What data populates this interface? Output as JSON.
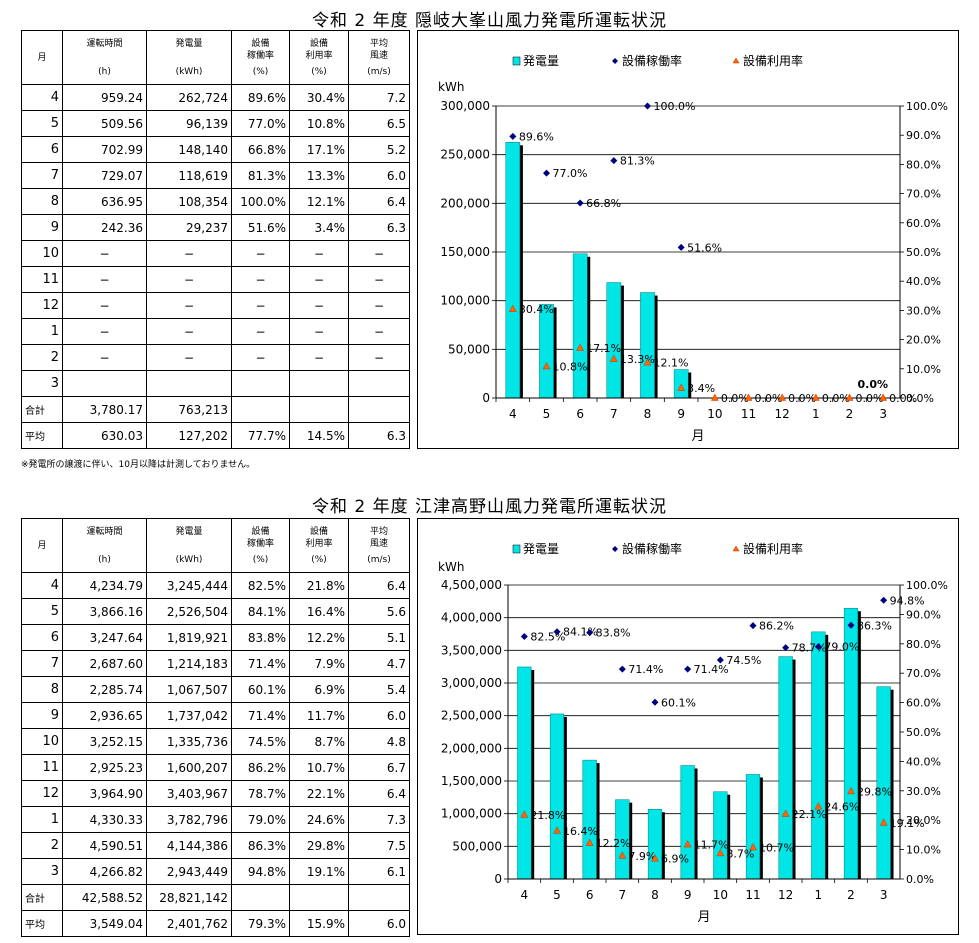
{
  "sections": [
    {
      "title": "令和 2 年度 隠岐大峯山風力発電所運転状況",
      "headers": [
        {
          "l1": "月",
          "l2": "",
          "l3": ""
        },
        {
          "l1": "運転時間",
          "l2": "",
          "l3": "(h)"
        },
        {
          "l1": "発電量",
          "l2": "",
          "l3": "(kWh)"
        },
        {
          "l1": "設備",
          "l2": "稼働率",
          "l3": "(%)"
        },
        {
          "l1": "設備",
          "l2": "利用率",
          "l3": "(%)"
        },
        {
          "l1": "平均",
          "l2": "風速",
          "l3": "(m/s)"
        }
      ],
      "rows": [
        [
          "4",
          "959.24",
          "262,724",
          "89.6%",
          "30.4%",
          "7.2"
        ],
        [
          "5",
          "509.56",
          "96,139",
          "77.0%",
          "10.8%",
          "6.5"
        ],
        [
          "6",
          "702.99",
          "148,140",
          "66.8%",
          "17.1%",
          "5.2"
        ],
        [
          "7",
          "729.07",
          "118,619",
          "81.3%",
          "13.3%",
          "6.0"
        ],
        [
          "8",
          "636.95",
          "108,354",
          "100.0%",
          "12.1%",
          "6.4"
        ],
        [
          "9",
          "242.36",
          "29,237",
          "51.6%",
          "3.4%",
          "6.3"
        ],
        [
          "10",
          "−",
          "−",
          "−",
          "−",
          "−"
        ],
        [
          "11",
          "−",
          "−",
          "−",
          "−",
          "−"
        ],
        [
          "12",
          "−",
          "−",
          "−",
          "−",
          "−"
        ],
        [
          "1",
          "−",
          "−",
          "−",
          "−",
          "−"
        ],
        [
          "2",
          "−",
          "−",
          "−",
          "−",
          "−"
        ],
        [
          "3",
          "",
          "",
          "",
          "",
          ""
        ]
      ],
      "total": [
        "合計",
        "3,780.17",
        "763,213",
        "",
        "",
        ""
      ],
      "average": [
        "平均",
        "630.03",
        "127,202",
        "77.7%",
        "14.5%",
        "6.3"
      ],
      "note": "※発電所の譲渡に伴い、10月以降は計測しておりません。"
    },
    {
      "title": "令和 2 年度 江津高野山風力発電所運転状況",
      "headers": [
        {
          "l1": "月",
          "l2": "",
          "l3": ""
        },
        {
          "l1": "運転時間",
          "l2": "",
          "l3": "(h)"
        },
        {
          "l1": "発電量",
          "l2": "",
          "l3": "(kWh)"
        },
        {
          "l1": "設備",
          "l2": "稼働率",
          "l3": "(%)"
        },
        {
          "l1": "設備",
          "l2": "利用率",
          "l3": "(%)"
        },
        {
          "l1": "平均",
          "l2": "風速",
          "l3": "(m/s)"
        }
      ],
      "rows": [
        [
          "4",
          "4,234.79",
          "3,245,444",
          "82.5%",
          "21.8%",
          "6.4"
        ],
        [
          "5",
          "3,866.16",
          "2,526,504",
          "84.1%",
          "16.4%",
          "5.6"
        ],
        [
          "6",
          "3,247.64",
          "1,819,921",
          "83.8%",
          "12.2%",
          "5.1"
        ],
        [
          "7",
          "2,687.60",
          "1,214,183",
          "71.4%",
          "7.9%",
          "4.7"
        ],
        [
          "8",
          "2,285.74",
          "1,067,507",
          "60.1%",
          "6.9%",
          "5.4"
        ],
        [
          "9",
          "2,936.65",
          "1,737,042",
          "71.4%",
          "11.7%",
          "6.0"
        ],
        [
          "10",
          "3,252.15",
          "1,335,736",
          "74.5%",
          "8.7%",
          "4.8"
        ],
        [
          "11",
          "2,925.23",
          "1,600,207",
          "86.2%",
          "10.7%",
          "6.7"
        ],
        [
          "12",
          "3,964.90",
          "3,403,967",
          "78.7%",
          "22.1%",
          "6.4"
        ],
        [
          "1",
          "4,330.33",
          "3,782,796",
          "79.0%",
          "24.6%",
          "7.3"
        ],
        [
          "2",
          "4,590.51",
          "4,144,386",
          "86.3%",
          "29.8%",
          "7.5"
        ],
        [
          "3",
          "4,266.82",
          "2,943,449",
          "94.8%",
          "19.1%",
          "6.1"
        ]
      ],
      "total": [
        "合計",
        "42,588.52",
        "28,821,142",
        "",
        "",
        ""
      ],
      "average": [
        "平均",
        "3,549.04",
        "2,401,762",
        "79.3%",
        "15.9%",
        "6.0"
      ]
    }
  ],
  "chart_data": [
    {
      "type": "bar",
      "categories": [
        "4",
        "5",
        "6",
        "7",
        "8",
        "9",
        "10",
        "11",
        "12",
        "1",
        "2",
        "3"
      ],
      "series": [
        {
          "name": "発電量",
          "kind": "bar",
          "axis": "left",
          "color": "#00e5e5",
          "values": [
            262724,
            96139,
            148140,
            118619,
            108354,
            29237,
            null,
            null,
            null,
            null,
            null,
            null
          ]
        },
        {
          "name": "設備稼働率",
          "kind": "marker",
          "marker": "diamond",
          "axis": "right",
          "color": "#000080",
          "values": [
            89.6,
            77.0,
            66.8,
            81.3,
            100.0,
            51.6,
            null,
            null,
            null,
            null,
            null,
            null
          ],
          "labels": [
            "89.6%",
            "77.0%",
            "66.8%",
            "81.3%",
            "100.0%",
            "51.6%",
            "",
            "",
            "",
            "",
            "",
            ""
          ]
        },
        {
          "name": "設備利用率",
          "kind": "marker",
          "marker": "triangle",
          "axis": "right",
          "color": "#ff6600",
          "values": [
            30.4,
            10.8,
            17.1,
            13.3,
            12.1,
            3.4,
            0,
            0,
            0,
            0,
            0,
            0
          ],
          "labels": [
            "30.4%",
            "10.8%",
            "17.1%",
            "13.3%",
            "12.1%",
            "3.4%",
            "0.0%",
            "0.0%",
            "0.0%",
            "0.0%",
            "0.0%",
            "0.0%"
          ]
        }
      ],
      "extra_label": "0.0%",
      "ylim": [
        0,
        300000
      ],
      "yticks": [
        "0",
        "50,000",
        "100,000",
        "150,000",
        "200,000",
        "250,000",
        "300,000"
      ],
      "y2lim": [
        0,
        100
      ],
      "y2ticks": [
        "0.0%",
        "10.0%",
        "20.0%",
        "30.0%",
        "40.0%",
        "50.0%",
        "60.0%",
        "70.0%",
        "80.0%",
        "90.0%",
        "100.0%"
      ],
      "ylabel": "kWh",
      "xlabel": "月",
      "legend": "top",
      "grid": true
    },
    {
      "type": "bar",
      "categories": [
        "4",
        "5",
        "6",
        "7",
        "8",
        "9",
        "10",
        "11",
        "12",
        "1",
        "2",
        "3"
      ],
      "series": [
        {
          "name": "発電量",
          "kind": "bar",
          "axis": "left",
          "color": "#00e5e5",
          "values": [
            3245444,
            2526504,
            1819921,
            1214183,
            1067507,
            1737042,
            1335736,
            1600207,
            3403967,
            3782796,
            4144386,
            2943449
          ]
        },
        {
          "name": "設備稼働率",
          "kind": "marker",
          "marker": "diamond",
          "axis": "right",
          "color": "#000080",
          "values": [
            82.5,
            84.1,
            83.8,
            71.4,
            60.1,
            71.4,
            74.5,
            86.2,
            78.7,
            79.0,
            86.3,
            94.8
          ],
          "labels": [
            "82.5%",
            "84.1%",
            "83.8%",
            "71.4%",
            "60.1%",
            "71.4%",
            "74.5%",
            "86.2%",
            "78.7%",
            "79.0%",
            "86.3%",
            "94.8%"
          ]
        },
        {
          "name": "設備利用率",
          "kind": "marker",
          "marker": "triangle",
          "axis": "right",
          "color": "#ff6600",
          "values": [
            21.8,
            16.4,
            12.2,
            7.9,
            6.9,
            11.7,
            8.7,
            10.7,
            22.1,
            24.6,
            29.8,
            19.1
          ],
          "labels": [
            "21.8%",
            "16.4%",
            "12.2%",
            "7.9%",
            "6.9%",
            "11.7%",
            "8.7%",
            "10.7%",
            "22.1%",
            "24.6%",
            "29.8%",
            "19.1%"
          ]
        }
      ],
      "ylim": [
        0,
        4500000
      ],
      "yticks": [
        "0",
        "500,000",
        "1,000,000",
        "1,500,000",
        "2,000,000",
        "2,500,000",
        "3,000,000",
        "3,500,000",
        "4,000,000",
        "4,500,000"
      ],
      "y2lim": [
        0,
        100
      ],
      "y2ticks": [
        "0.0%",
        "10.0%",
        "20.0%",
        "30.0%",
        "40.0%",
        "50.0%",
        "60.0%",
        "70.0%",
        "80.0%",
        "90.0%",
        "100.0%"
      ],
      "ylabel": "kWh",
      "xlabel": "月",
      "legend": "top",
      "grid": true
    }
  ]
}
